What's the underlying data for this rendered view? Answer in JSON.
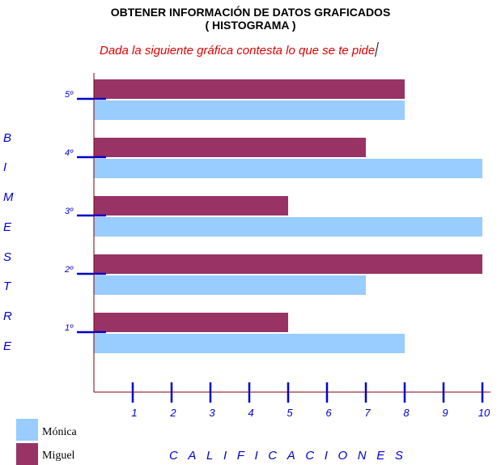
{
  "header": {
    "title": "OBTENER INFORMACIÓN DE DATOS GRAFICADOS",
    "subtitle": "( HISTOGRAMA )",
    "instruction": "Dada la siguiente gráfica contesta lo que se te pide"
  },
  "chart_data": {
    "type": "bar",
    "orientation": "horizontal",
    "categories": [
      "1º",
      "2º",
      "3º",
      "4º",
      "5º"
    ],
    "series": [
      {
        "name": "Miguel",
        "color": "#993366",
        "values": [
          5,
          10,
          5,
          7,
          8
        ]
      },
      {
        "name": "Mónica",
        "color": "#99ccff",
        "values": [
          8,
          7,
          10,
          10,
          8
        ]
      }
    ],
    "xticks": [
      "1",
      "2",
      "3",
      "4",
      "5",
      "6",
      "7",
      "8",
      "9",
      "10"
    ],
    "xlim": [
      0,
      10
    ],
    "ylabel_letters": [
      "B",
      "I",
      "M",
      "E",
      "S",
      "T",
      "R",
      "E"
    ],
    "xlabel": "CALIFICACIONES",
    "axis_color": "#0000cc",
    "baseline_color": "#800000"
  },
  "legend": [
    {
      "label": "Mónica",
      "color": "#99ccff"
    },
    {
      "label": "Miguel",
      "color": "#993366"
    }
  ]
}
